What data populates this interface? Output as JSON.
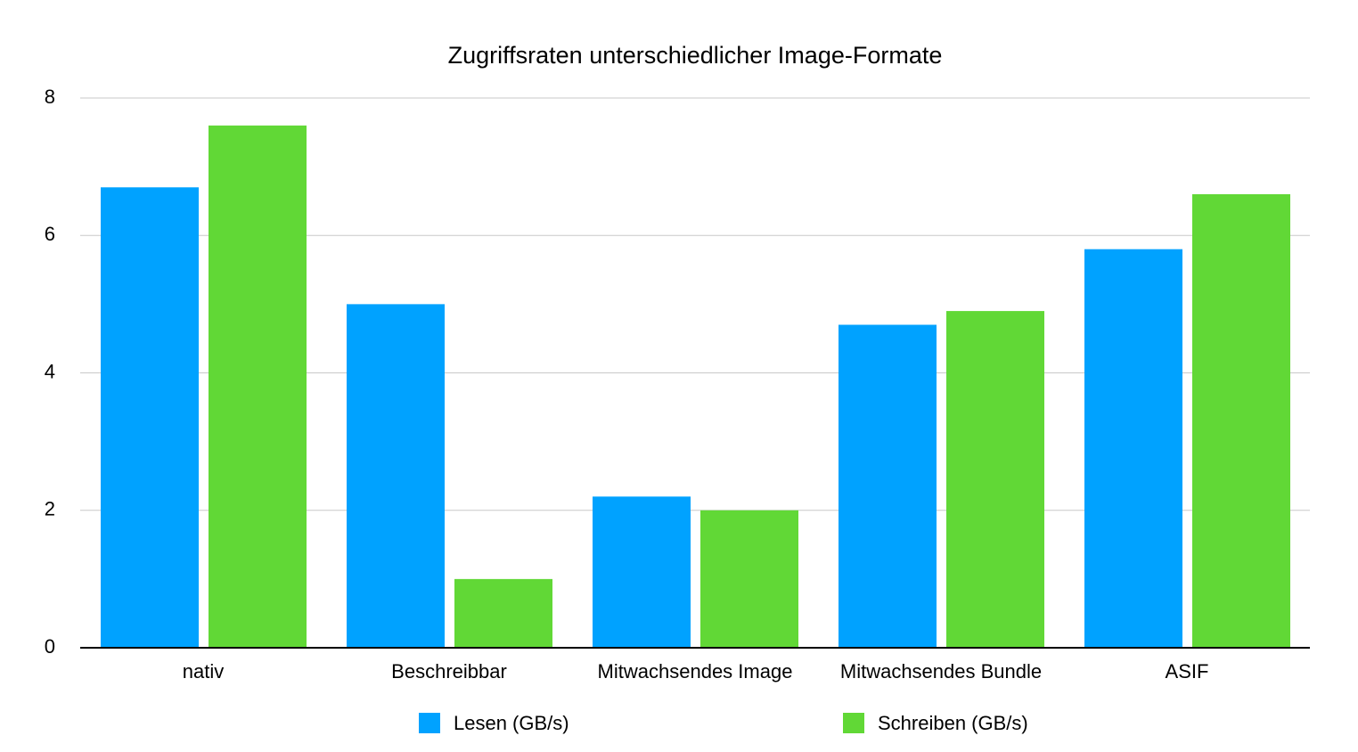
{
  "chart_data": {
    "type": "bar",
    "title": "Zugriffsraten unterschiedlicher Image-Formate",
    "categories": [
      "nativ",
      "Beschreibbar",
      "Mitwachsendes Image",
      "Mitwachsendes Bundle",
      "ASIF"
    ],
    "series": [
      {
        "name": "Lesen (GB/s)",
        "color": "#00a2ff",
        "values": [
          6.7,
          5.0,
          2.2,
          4.7,
          5.8
        ]
      },
      {
        "name": "Schreiben (GB/s)",
        "color": "#61d836",
        "values": [
          7.6,
          1.0,
          2.0,
          4.9,
          6.6
        ]
      }
    ],
    "ylim": [
      0,
      8
    ],
    "yticks": [
      0,
      2,
      4,
      6,
      8
    ],
    "grid": true,
    "legend": "bottom"
  }
}
